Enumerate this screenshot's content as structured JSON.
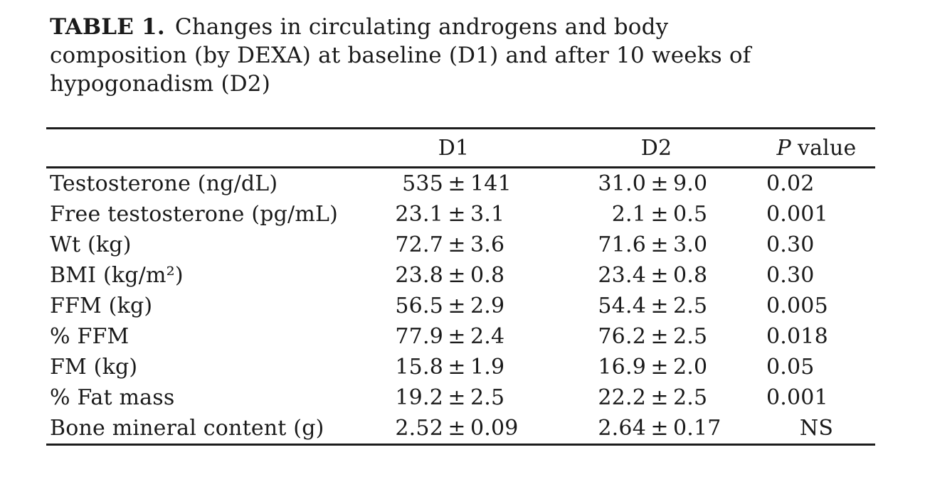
{
  "title": {
    "label": "TABLE 1.",
    "lines": [
      "Changes in circulating androgens and body",
      "composition (by DEXA) at baseline (D1) and after 10 weeks of",
      "hypogonadism (D2)"
    ]
  },
  "table": {
    "pm": "±",
    "columns": {
      "d1": "D1",
      "d2": "D2",
      "p_italic": "P",
      "p_rest": "value"
    },
    "rows": [
      {
        "label": "Testosterone (ng/dL)",
        "d1_mean": "535",
        "d1_sd": "141",
        "d2_mean": "31.0",
        "d2_sd": "9.0",
        "p": "0.02"
      },
      {
        "label": "Free testosterone (pg/mL)",
        "d1_mean": "23.1",
        "d1_sd": "3.1",
        "d2_mean": "2.1",
        "d2_sd": "0.5",
        "p": "0.001"
      },
      {
        "label": "Wt (kg)",
        "d1_mean": "72.7",
        "d1_sd": "3.6",
        "d2_mean": "71.6",
        "d2_sd": "3.0",
        "p": "0.30"
      },
      {
        "label": "BMI (kg/m²)",
        "d1_mean": "23.8",
        "d1_sd": "0.8",
        "d2_mean": "23.4",
        "d2_sd": "0.8",
        "p": "0.30"
      },
      {
        "label": "FFM (kg)",
        "d1_mean": "56.5",
        "d1_sd": "2.9",
        "d2_mean": "54.4",
        "d2_sd": "2.5",
        "p": "0.005"
      },
      {
        "label": "% FFM",
        "d1_mean": "77.9",
        "d1_sd": "2.4",
        "d2_mean": "76.2",
        "d2_sd": "2.5",
        "p": "0.018"
      },
      {
        "label": "FM (kg)",
        "d1_mean": "15.8",
        "d1_sd": "1.9",
        "d2_mean": "16.9",
        "d2_sd": "2.0",
        "p": "0.05"
      },
      {
        "label": "% Fat mass",
        "d1_mean": "19.2",
        "d1_sd": "2.5",
        "d2_mean": "22.2",
        "d2_sd": "2.5",
        "p": "0.001"
      },
      {
        "label": "Bone mineral content (g)",
        "d1_mean": "2.52",
        "d1_sd": "0.09",
        "d2_mean": "2.64",
        "d2_sd": "0.17",
        "p": "NS"
      }
    ]
  }
}
